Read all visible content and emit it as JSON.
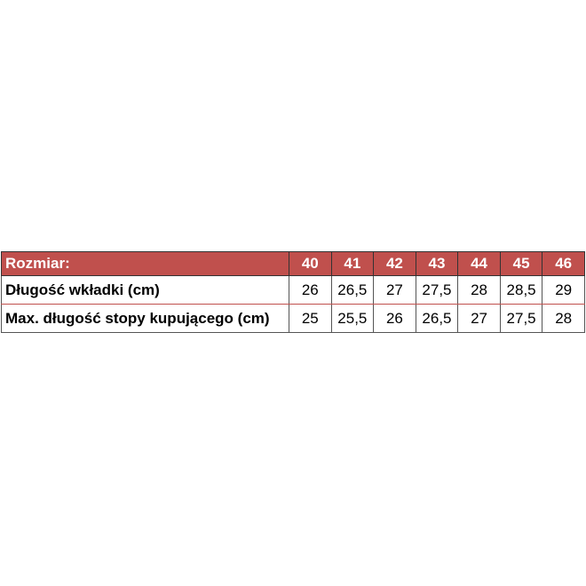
{
  "table": {
    "header_label": "Rozmiar:",
    "sizes": [
      "40",
      "41",
      "42",
      "43",
      "44",
      "45",
      "46"
    ],
    "rows": [
      {
        "label": "Długość wkładki (cm)",
        "values": [
          "26",
          "26,5",
          "27",
          "27,5",
          "28",
          "28,5",
          "29"
        ]
      },
      {
        "label": "Max. długość stopy kupującego (cm)",
        "values": [
          "25",
          "25,5",
          "26",
          "26,5",
          "27",
          "27,5",
          "28"
        ]
      }
    ],
    "colors": {
      "header_bg": "#c0504d",
      "header_text": "#ffffff"
    }
  }
}
